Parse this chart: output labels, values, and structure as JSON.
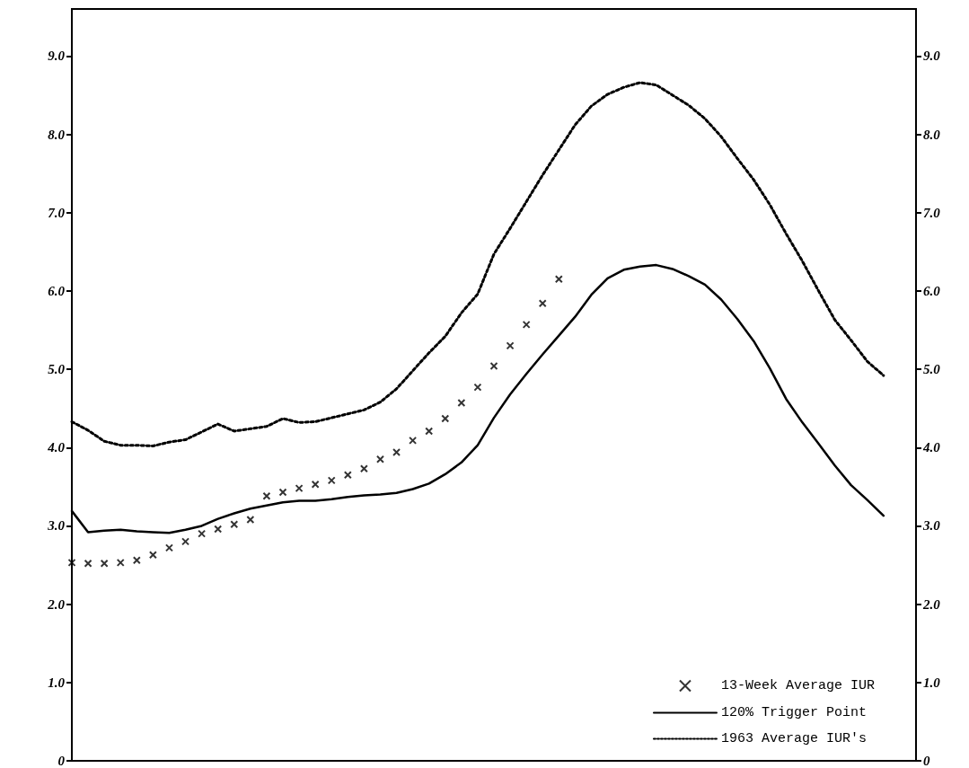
{
  "chart_data": {
    "type": "line",
    "categories": [
      null,
      null,
      null,
      null,
      null,
      null,
      null,
      null,
      null,
      null,
      null,
      null,
      null,
      null,
      null,
      null,
      null,
      null,
      null,
      null,
      null,
      null,
      null,
      null,
      null,
      null,
      null,
      null,
      null,
      null,
      null,
      null,
      null,
      null,
      null,
      null,
      null,
      null,
      null,
      null,
      null,
      null,
      null,
      null,
      null,
      null,
      null,
      null,
      null,
      null,
      null,
      null,
      null
    ],
    "series": [
      {
        "name": "13-Week Average IUR",
        "type": "scatter",
        "marker": "cross",
        "color": "#000000",
        "values": [
          2.53,
          2.52,
          2.52,
          2.53,
          2.56,
          2.63,
          2.72,
          2.8,
          2.9,
          2.96,
          3.02,
          3.08,
          3.38,
          3.43,
          3.48,
          3.53,
          3.58,
          3.65,
          3.73,
          3.85,
          3.94,
          4.09,
          4.21,
          4.37,
          4.57,
          4.77,
          5.04,
          5.3,
          5.57,
          5.84,
          6.15,
          null,
          null,
          null,
          null,
          null,
          null,
          null,
          null,
          null,
          null,
          null,
          null,
          null,
          null,
          null,
          null,
          null,
          null,
          null,
          null,
          null,
          null
        ]
      },
      {
        "name": "120% Trigger Point",
        "line_style": "solid",
        "color": "#000000",
        "values": [
          3.19,
          2.92,
          2.94,
          2.95,
          2.93,
          2.92,
          2.91,
          2.95,
          3.0,
          3.09,
          3.16,
          3.22,
          3.26,
          3.3,
          3.32,
          3.32,
          3.34,
          3.37,
          3.39,
          3.4,
          3.42,
          3.47,
          3.54,
          3.66,
          3.81,
          4.03,
          4.38,
          4.68,
          4.94,
          5.19,
          5.43,
          5.67,
          5.95,
          6.16,
          6.27,
          6.31,
          6.33,
          6.28,
          6.19,
          6.08,
          5.89,
          5.64,
          5.36,
          5.01,
          4.62,
          4.32,
          4.05,
          3.77,
          3.52,
          3.33,
          3.13,
          null,
          null
        ]
      },
      {
        "name": "1963 Average IUR's",
        "line_style": "dotted",
        "color": "#000000",
        "values": [
          4.33,
          4.22,
          4.08,
          4.03,
          4.03,
          4.02,
          4.07,
          4.1,
          4.2,
          4.3,
          4.21,
          4.24,
          4.27,
          4.37,
          4.32,
          4.33,
          4.38,
          4.43,
          4.48,
          4.58,
          4.75,
          4.98,
          5.21,
          5.42,
          5.72,
          5.96,
          6.47,
          6.8,
          7.14,
          7.48,
          7.8,
          8.12,
          8.36,
          8.51,
          8.6,
          8.66,
          8.63,
          8.5,
          8.37,
          8.2,
          7.97,
          7.69,
          7.42,
          7.1,
          6.73,
          6.38,
          6.0,
          5.63,
          5.37,
          5.1,
          4.92,
          null,
          null
        ]
      }
    ],
    "ylim": [
      0,
      9.6
    ],
    "yticks": [
      {
        "value": 0,
        "label": "0"
      },
      {
        "value": 1,
        "label": "1.0"
      },
      {
        "value": 2,
        "label": "2.0"
      },
      {
        "value": 3,
        "label": "3.0"
      },
      {
        "value": 4,
        "label": "4.0"
      },
      {
        "value": 5,
        "label": "5.0"
      },
      {
        "value": 6,
        "label": "6.0"
      },
      {
        "value": 7,
        "label": "7.0"
      },
      {
        "value": 8,
        "label": "8.0"
      },
      {
        "value": 9,
        "label": "9.0"
      }
    ],
    "y2lim": [
      0,
      9.6
    ],
    "y2ticks": [
      {
        "value": 0,
        "label": "0"
      },
      {
        "value": 1,
        "label": "1.0"
      },
      {
        "value": 2,
        "label": "2.0"
      },
      {
        "value": 3,
        "label": "3.0"
      },
      {
        "value": 4,
        "label": "4.0"
      },
      {
        "value": 5,
        "label": "5.0"
      },
      {
        "value": 6,
        "label": "6.0"
      },
      {
        "value": 7,
        "label": "7.0"
      },
      {
        "value": 8,
        "label": "8.0"
      },
      {
        "value": 9,
        "label": "9.0"
      }
    ],
    "legend": "bottom right",
    "grid": false
  }
}
